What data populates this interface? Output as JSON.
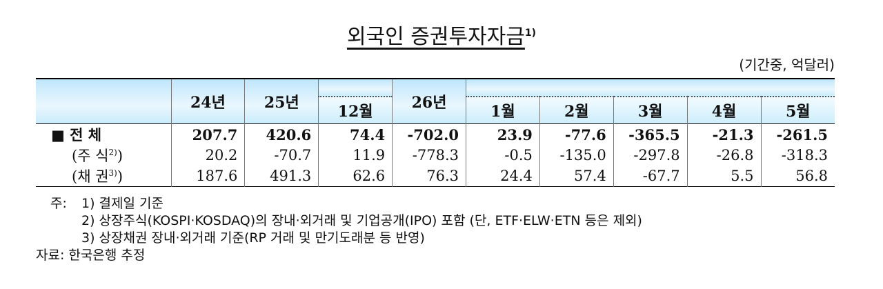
{
  "title": {
    "text": "외국인 증권투자자금",
    "note": "1)"
  },
  "unit": "(기간중, 억달러)",
  "table": {
    "columns": [
      "24년",
      "25년",
      "12월",
      "26년",
      "1월",
      "2월",
      "3월",
      "4월",
      "5월"
    ],
    "rows": [
      {
        "label": "■ 전 체",
        "note": null,
        "close": null,
        "values": [
          "207.7",
          "420.6",
          "74.4",
          "-702.0",
          "23.9",
          "-77.6",
          "-365.5",
          "-21.3",
          "-261.5"
        ]
      },
      {
        "label": "(주 식",
        "note": "2)",
        "close": ")",
        "values": [
          "20.2",
          "-70.7",
          "11.9",
          "-778.3",
          "-0.5",
          "-135.0",
          "-297.8",
          "-26.8",
          "-318.3"
        ]
      },
      {
        "label": "(채 권",
        "note": "3)",
        "close": ")",
        "values": [
          "187.6",
          "491.3",
          "62.6",
          "76.3",
          "24.4",
          "57.4",
          "-67.7",
          "5.5",
          "56.8"
        ]
      }
    ]
  },
  "notes": {
    "label": "주:",
    "items": [
      "1) 결제일 기준",
      "2) 상장주식(KOSPI·KOSDAQ)의 장내·외거래 및 기업공개(IPO) 포함 (단, ETF·ELW·ETN 등은 제외)",
      "3) 상장채권 장내·외거래 기준(RP 거래 및 만기도래분 등 반영)"
    ]
  },
  "source": "자료: 한국은행 추정"
}
